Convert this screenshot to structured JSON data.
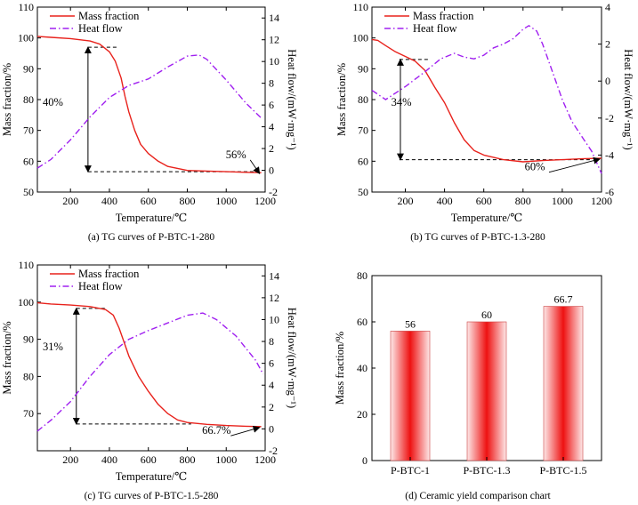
{
  "chart_data": [
    {
      "type": "line",
      "caption": "(a) TG curves of P-BTC-1-280",
      "xlabel": "Temperature/℃",
      "ylabel": "Mass fraction/%",
      "y2label": "Heat flow/(mW·mg⁻¹)",
      "xlim": [
        30,
        1200
      ],
      "ylim": [
        50,
        110
      ],
      "y2lim": [
        -2,
        15
      ],
      "xticks": [
        200,
        400,
        600,
        800,
        1000,
        1200
      ],
      "yticks": [
        50,
        60,
        70,
        80,
        90,
        100,
        110
      ],
      "y2ticks": [
        -2,
        0,
        2,
        4,
        6,
        8,
        10,
        12,
        14
      ],
      "legend_position": "top-left",
      "legend": [
        "Mass fraction",
        "Heat flow"
      ],
      "series": [
        {
          "name": "Mass fraction",
          "axis": "left",
          "color": "#e8221c",
          "style": "solid",
          "x": [
            30,
            100,
            200,
            300,
            350,
            400,
            430,
            460,
            480,
            500,
            530,
            560,
            600,
            650,
            700,
            800,
            900,
            1000,
            1100,
            1180
          ],
          "y": [
            100.5,
            100.2,
            99.8,
            99.0,
            98.0,
            95.5,
            92.5,
            87.0,
            81.0,
            76.0,
            70.0,
            65.5,
            62.5,
            60.0,
            58.3,
            57.0,
            56.8,
            56.6,
            56.4,
            56.3
          ]
        },
        {
          "name": "Heat flow",
          "axis": "right",
          "color": "#a020f0",
          "style": "dashdot",
          "x": [
            30,
            100,
            200,
            300,
            400,
            500,
            600,
            700,
            800,
            860,
            900,
            1000,
            1100,
            1180
          ],
          "y": [
            0.2,
            1.0,
            2.8,
            4.9,
            6.7,
            7.8,
            8.4,
            9.5,
            10.5,
            10.6,
            10.2,
            8.3,
            6.2,
            4.8
          ]
        }
      ],
      "annotations": [
        {
          "text": "40%",
          "x": 110,
          "y": 78
        },
        {
          "text": "56%",
          "x": 1050,
          "y": 61
        }
      ],
      "reference_lines": [
        {
          "type": "hline_dashed",
          "y": 97,
          "x": [
            290,
            440
          ]
        },
        {
          "type": "hline_dashed",
          "y": 56.6,
          "x": [
            290,
            1170
          ]
        },
        {
          "type": "double_arrow",
          "x": 290,
          "y": [
            56.6,
            97
          ]
        }
      ]
    },
    {
      "type": "line",
      "caption": "(b) TG curves of P-BTC-1.3-280",
      "xlabel": "Temperature/℃",
      "ylabel": "Mass fraction/%",
      "y2label": "Heat flow/(mW·mg⁻¹)",
      "xlim": [
        30,
        1200
      ],
      "ylim": [
        50,
        110
      ],
      "y2lim": [
        -6,
        4
      ],
      "xticks": [
        200,
        400,
        600,
        800,
        1000,
        1200
      ],
      "yticks": [
        50,
        60,
        70,
        80,
        90,
        100,
        110
      ],
      "y2ticks": [
        -6,
        -4,
        -2,
        0,
        2,
        4
      ],
      "legend_position": "top-left",
      "legend": [
        "Mass fraction",
        "Heat flow"
      ],
      "series": [
        {
          "name": "Mass fraction",
          "axis": "left",
          "color": "#e8221c",
          "style": "solid",
          "x": [
            30,
            60,
            100,
            150,
            200,
            250,
            300,
            350,
            400,
            450,
            500,
            550,
            600,
            700,
            800,
            900,
            1000,
            1100,
            1200
          ],
          "y": [
            99.5,
            99.2,
            97.5,
            95.5,
            94.0,
            92.5,
            89.5,
            84.0,
            79.0,
            72.5,
            67.0,
            63.5,
            62.0,
            60.5,
            59.8,
            60.2,
            60.5,
            60.8,
            61.0
          ]
        },
        {
          "name": "Heat flow",
          "axis": "right",
          "color": "#a020f0",
          "style": "dashdot",
          "x": [
            30,
            100,
            200,
            300,
            380,
            450,
            500,
            550,
            600,
            650,
            700,
            750,
            800,
            830,
            870,
            900,
            950,
            1000,
            1050,
            1100,
            1150,
            1200
          ],
          "y": [
            -0.5,
            -1.0,
            -0.3,
            0.5,
            1.2,
            1.5,
            1.3,
            1.2,
            1.4,
            1.8,
            2.0,
            2.3,
            2.8,
            3.0,
            2.7,
            2.0,
            0.5,
            -1.0,
            -2.2,
            -3.0,
            -3.8,
            -5.0
          ]
        }
      ],
      "annotations": [
        {
          "text": "34%",
          "x": 180,
          "y": 78
        },
        {
          "text": "60%",
          "x": 860,
          "y": 57
        }
      ],
      "reference_lines": [
        {
          "type": "hline_dashed",
          "y": 93,
          "x": [
            170,
            320
          ]
        },
        {
          "type": "hline_dashed",
          "y": 60.5,
          "x": [
            170,
            1150
          ]
        },
        {
          "type": "double_arrow",
          "x": 175,
          "y": [
            60.5,
            93
          ]
        }
      ]
    },
    {
      "type": "line",
      "caption": "(c) TG curves of P-BTC-1.5-280",
      "xlabel": "Temperature/℃",
      "ylabel": "Mass fraction/%",
      "y2label": "Heat flow/(mW·mg⁻¹)",
      "xlim": [
        30,
        1200
      ],
      "ylim": [
        60,
        110
      ],
      "y2lim": [
        -2,
        15
      ],
      "xticks": [
        200,
        400,
        600,
        800,
        1000,
        1200
      ],
      "yticks": [
        70,
        80,
        90,
        100,
        110
      ],
      "y2ticks": [
        -2,
        0,
        2,
        4,
        6,
        8,
        10,
        12,
        14
      ],
      "legend_position": "top-left",
      "legend": [
        "Mass fraction",
        "Heat flow"
      ],
      "series": [
        {
          "name": "Mass fraction",
          "axis": "left",
          "color": "#e8221c",
          "style": "solid",
          "x": [
            30,
            100,
            200,
            300,
            380,
            420,
            450,
            480,
            500,
            550,
            600,
            650,
            700,
            750,
            800,
            900,
            1000,
            1100,
            1180
          ],
          "y": [
            99.8,
            99.5,
            99.2,
            98.8,
            98.0,
            96.5,
            93.0,
            88.5,
            85.5,
            80.0,
            76.0,
            72.5,
            70.0,
            68.3,
            67.6,
            67.1,
            66.8,
            66.6,
            66.5
          ]
        },
        {
          "name": "Heat flow",
          "axis": "right",
          "color": "#a020f0",
          "style": "dashdot",
          "x": [
            30,
            100,
            200,
            300,
            400,
            500,
            600,
            700,
            800,
            880,
            950,
            1050,
            1150,
            1190
          ],
          "y": [
            -0.2,
            0.8,
            2.5,
            4.8,
            6.8,
            8.2,
            9.0,
            9.7,
            10.4,
            10.6,
            10.0,
            8.5,
            6.3,
            5.0
          ]
        }
      ],
      "annotations": [
        {
          "text": "31%",
          "x": 110,
          "y": 87
        },
        {
          "text": "66.7%",
          "x": 950,
          "y": 64.5
        }
      ],
      "reference_lines": [
        {
          "type": "hline_dashed",
          "y": 98.3,
          "x": [
            230,
            380
          ]
        },
        {
          "type": "hline_dashed",
          "y": 67.2,
          "x": [
            230,
            820
          ]
        },
        {
          "type": "double_arrow",
          "x": 230,
          "y": [
            67.2,
            98.3
          ]
        }
      ]
    },
    {
      "type": "bar",
      "caption": "(d) Ceramic yield comparison chart",
      "categories": [
        "P-BTC-1",
        "P-BTC-1.3",
        "P-BTC-1.5"
      ],
      "values": [
        56,
        60,
        66.7
      ],
      "data_labels": [
        "56",
        "60",
        "66.7"
      ],
      "ylabel": "Mass fraction/%",
      "ylim": [
        0,
        80
      ],
      "yticks": [
        0,
        20,
        40,
        60,
        80
      ],
      "bar_fill": "red-gradient",
      "color": "#ee1111"
    }
  ]
}
